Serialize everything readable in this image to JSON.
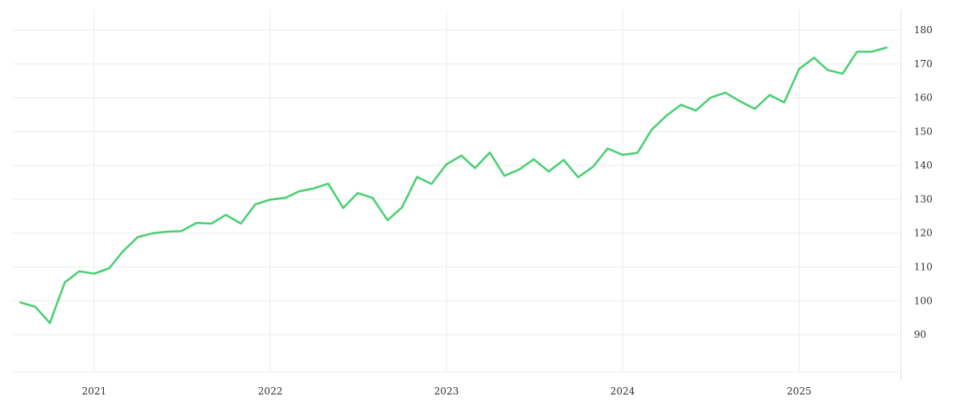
{
  "chart_data": {
    "type": "line",
    "title": "",
    "xlabel": "",
    "ylabel": "",
    "grid": true,
    "legend": "none",
    "x_ticks": [
      "2021",
      "2022",
      "2023",
      "2024",
      "2025"
    ],
    "y_ticks": [
      90,
      100,
      110,
      120,
      130,
      140,
      150,
      160,
      170,
      180
    ],
    "xlim": [
      "2020-07-15",
      "2025-07-31"
    ],
    "ylim": [
      79,
      186
    ],
    "colors": {
      "line": "#4cd074"
    },
    "series": [
      {
        "x": [
          "2020-08-01",
          "2020-09-01",
          "2020-10-01",
          "2020-11-01",
          "2020-12-01",
          "2021-01-01",
          "2021-02-01",
          "2021-03-01",
          "2021-04-01",
          "2021-05-01",
          "2021-06-01",
          "2021-07-01",
          "2021-08-01",
          "2021-09-01",
          "2021-10-01",
          "2021-11-01",
          "2021-12-01",
          "2022-01-01",
          "2022-02-01",
          "2022-03-01",
          "2022-04-01",
          "2022-05-01",
          "2022-06-01",
          "2022-07-01",
          "2022-08-01",
          "2022-09-01",
          "2022-10-01",
          "2022-11-01",
          "2022-12-01",
          "2023-01-01",
          "2023-02-01",
          "2023-03-01",
          "2023-04-01",
          "2023-05-01",
          "2023-06-01",
          "2023-07-01",
          "2023-08-01",
          "2023-09-01",
          "2023-10-01",
          "2023-11-01",
          "2023-12-01",
          "2024-01-01",
          "2024-02-01",
          "2024-03-01",
          "2024-04-01",
          "2024-05-01",
          "2024-06-01",
          "2024-07-01",
          "2024-08-01",
          "2024-09-01",
          "2024-10-01",
          "2024-11-01",
          "2024-12-01",
          "2025-01-01",
          "2025-02-01",
          "2025-03-01",
          "2025-04-01",
          "2025-05-01",
          "2025-06-01",
          "2025-07-01"
        ],
        "values": [
          99.5,
          98.2,
          93.4,
          105.4,
          108.7,
          108.0,
          109.6,
          114.5,
          118.8,
          119.9,
          120.4,
          120.6,
          123.0,
          122.8,
          125.4,
          122.8,
          128.5,
          129.9,
          130.4,
          132.3,
          133.2,
          134.6,
          127.4,
          131.8,
          130.4,
          123.8,
          127.6,
          136.6,
          134.5,
          140.3,
          142.9,
          139.2,
          143.8,
          136.9,
          138.8,
          141.8,
          138.2,
          141.6,
          136.5,
          139.6,
          145.0,
          143.1,
          143.7,
          150.5,
          154.7,
          157.9,
          156.2,
          160.0,
          161.5,
          158.9,
          156.7,
          160.8,
          158.6,
          168.5,
          171.8,
          168.2,
          167.1,
          173.6,
          173.6,
          174.8
        ]
      }
    ]
  }
}
